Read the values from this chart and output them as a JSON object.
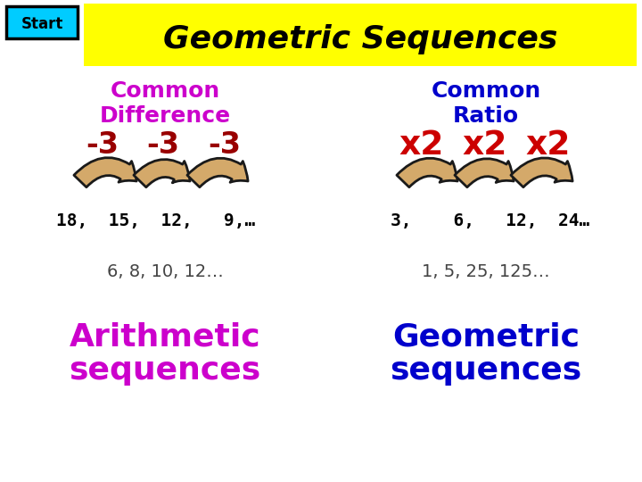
{
  "title": "Geometric Sequences",
  "title_bg": "#ffff00",
  "start_label": "Start",
  "start_bg": "#00ccff",
  "bg_color": "#ffffff",
  "left_header_line1": "Common",
  "left_header_line2": "Difference",
  "left_header_color": "#cc00cc",
  "left_diff_labels": [
    "-3",
    "-3",
    "-3"
  ],
  "left_diff_color": "#990000",
  "left_seq": "18,  15,  12,   9,…",
  "left_seq_color": "#000000",
  "left_extra": "6, 8, 10, 12…",
  "left_extra_color": "#444444",
  "left_bottom_line1": "Arithmetic",
  "left_bottom_line2": "sequences",
  "left_bottom_color": "#cc00cc",
  "right_header_line1": "Common",
  "right_header_line2": "Ratio",
  "right_header_color": "#0000cc",
  "right_ratio_labels": [
    "x2",
    "x2",
    "x2"
  ],
  "right_ratio_color": "#cc0000",
  "right_seq": "3,    6,   12,  24…",
  "right_seq_color": "#000000",
  "right_extra": "1, 5, 25, 125…",
  "right_extra_color": "#444444",
  "right_bottom_line1": "Geometric",
  "right_bottom_line2": "sequences",
  "right_bottom_color": "#0000cc",
  "arrow_fill": "#d4a96a",
  "arrow_edge": "#1a1a1a",
  "arrow_lw": 2.0
}
